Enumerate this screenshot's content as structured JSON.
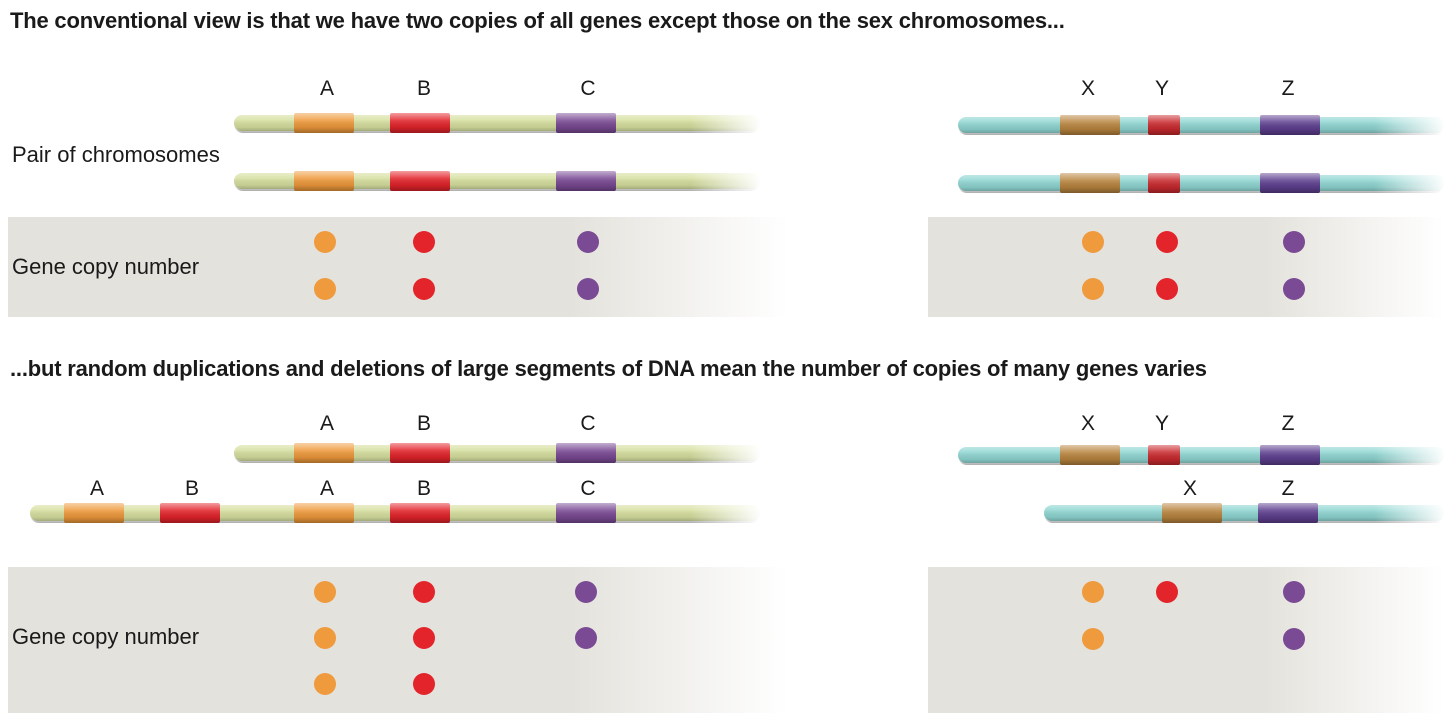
{
  "headings": {
    "top": "The conventional view is that we have two copies of all genes except those on the sex chromosomes...",
    "bottom": "...but random duplications and deletions of large segments of DNA mean the number of copies of many genes varies"
  },
  "labels": {
    "pair_of_chromosomes": "Pair of chromosomes",
    "gene_copy_number_top": "Gene copy number",
    "gene_copy_number_bottom": "Gene copy number"
  },
  "colors": {
    "gene_orange": "#ef9a3c",
    "gene_red": "#e3242b",
    "gene_purple": "#7a4a94",
    "chromosome_left": "#d7e0a0",
    "chromosome_right": "#8fd6d2",
    "copy_panel_bg": "#e4e2dc"
  },
  "panels": {
    "top_left": {
      "chromosomes": [
        {
          "genes": [
            "A",
            "B",
            "C"
          ],
          "labels_shown": true
        },
        {
          "genes": [
            "A",
            "B",
            "C"
          ],
          "labels_shown": false
        }
      ],
      "copy_numbers": {
        "A": 2,
        "B": 2,
        "C": 2
      }
    },
    "top_right": {
      "chromosomes": [
        {
          "genes": [
            "X",
            "Y",
            "Z"
          ],
          "labels_shown": true
        },
        {
          "genes": [
            "X",
            "Y",
            "Z"
          ],
          "labels_shown": false
        }
      ],
      "copy_numbers": {
        "X": 2,
        "Y": 2,
        "Z": 2
      }
    },
    "bottom_left": {
      "chromosomes": [
        {
          "genes": [
            "A",
            "B",
            "C"
          ],
          "labels_shown": true
        },
        {
          "genes": [
            "A",
            "B",
            "A",
            "B",
            "C"
          ],
          "labels_shown": true
        }
      ],
      "copy_numbers": {
        "A": 3,
        "B": 3,
        "C": 2
      }
    },
    "bottom_right": {
      "chromosomes": [
        {
          "genes": [
            "X",
            "Y",
            "Z"
          ],
          "labels_shown": true
        },
        {
          "genes": [
            "X",
            "Z"
          ],
          "labels_shown": true
        }
      ],
      "copy_numbers": {
        "X": 2,
        "Y": 1,
        "Z": 2
      }
    }
  }
}
